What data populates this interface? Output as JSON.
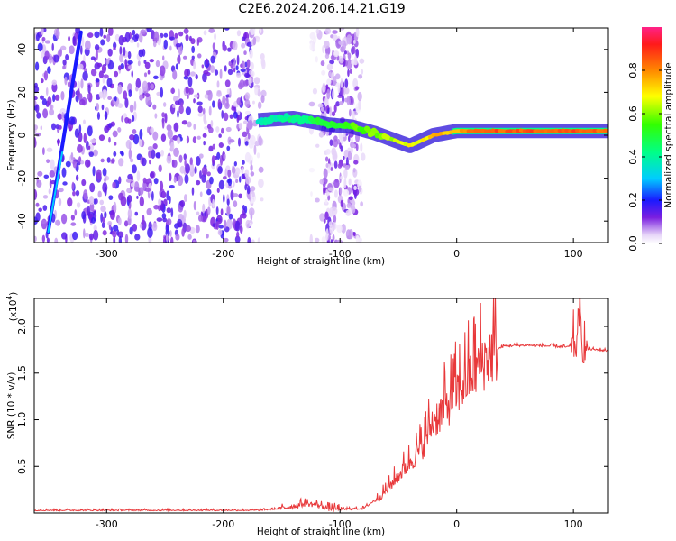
{
  "title": "C2E6.2024.206.14.21.G19",
  "chart_data": [
    {
      "type": "heatmap",
      "panel": "spectrogram",
      "xlabel": "Height of straight line (km)",
      "ylabel": "Frequency (Hz)",
      "xlim": [
        -362,
        130
      ],
      "ylim": [
        -50,
        50
      ],
      "xticks": [
        -300,
        -200,
        -100,
        0,
        100
      ],
      "yticks": [
        -40,
        -20,
        0,
        20,
        40
      ],
      "colorbar": {
        "label": "Normalized spectral amplitude",
        "range": [
          0.0,
          1.0
        ],
        "ticks": [
          0.0,
          0.2,
          0.4,
          0.6,
          0.8
        ],
        "tick_labels": [
          "0.0",
          "0.2",
          "0.4",
          "0.6",
          "0.8"
        ]
      },
      "features": [
        {
          "name": "noise-cloud-dense",
          "x_range": [
            -362,
            -175
          ],
          "f_range": [
            -50,
            50
          ],
          "amplitude": 0.12
        },
        {
          "name": "noise-cloud-band",
          "x_range": [
            -115,
            -85
          ],
          "f_range": [
            -50,
            50
          ],
          "amplitude": 0.1
        },
        {
          "name": "diagonal-streak",
          "points": [
            [
              -350,
              -45
            ],
            [
              -322,
              48
            ]
          ],
          "amplitude": 0.35
        },
        {
          "name": "carrier-trace",
          "points": [
            [
              -170,
              7
            ],
            [
              -140,
              8
            ],
            [
              -110,
              5
            ],
            [
              -90,
              4
            ],
            [
              -70,
              1
            ],
            [
              -50,
              -3
            ],
            [
              -40,
              -5
            ],
            [
              -20,
              0
            ],
            [
              0,
              2
            ],
            [
              50,
              2
            ],
            [
              130,
              2
            ]
          ],
          "amplitude_start": 0.35,
          "amplitude_end": 0.85
        }
      ]
    },
    {
      "type": "line",
      "panel": "snr",
      "xlabel": "Height of straight line (km)",
      "ylabel": "SNR (10 * v/v)",
      "y_multiplier": "(x10⁴)",
      "y_multiplier_base": "(x10",
      "y_multiplier_exp": "4",
      "y_multiplier_close": ")",
      "xlim": [
        -362,
        130
      ],
      "ylim": [
        0,
        2.3
      ],
      "xticks": [
        -300,
        -200,
        -100,
        0,
        100
      ],
      "yticks": [
        0.5,
        1.0,
        1.5,
        2.0
      ],
      "ytick_labels": [
        "0.5",
        "1.0",
        "1.5",
        "2.0"
      ],
      "color": "#e8393b",
      "envelope": [
        [
          -362,
          0.03
        ],
        [
          -250,
          0.03
        ],
        [
          -170,
          0.03
        ],
        [
          -150,
          0.05
        ],
        [
          -130,
          0.1
        ],
        [
          -120,
          0.09
        ],
        [
          -110,
          0.05
        ],
        [
          -100,
          0.04
        ],
        [
          -80,
          0.05
        ],
        [
          -65,
          0.18
        ],
        [
          -50,
          0.4
        ],
        [
          -40,
          0.55
        ],
        [
          -30,
          0.7
        ],
        [
          -20,
          1.0
        ],
        [
          -10,
          1.12
        ],
        [
          0,
          1.3
        ],
        [
          10,
          1.45
        ],
        [
          20,
          1.6
        ],
        [
          30,
          1.72
        ],
        [
          40,
          1.79
        ],
        [
          60,
          1.8
        ],
        [
          80,
          1.79
        ],
        [
          95,
          1.78
        ],
        [
          100,
          1.8
        ],
        [
          105,
          1.82
        ],
        [
          110,
          1.76
        ],
        [
          130,
          1.74
        ]
      ]
    }
  ]
}
